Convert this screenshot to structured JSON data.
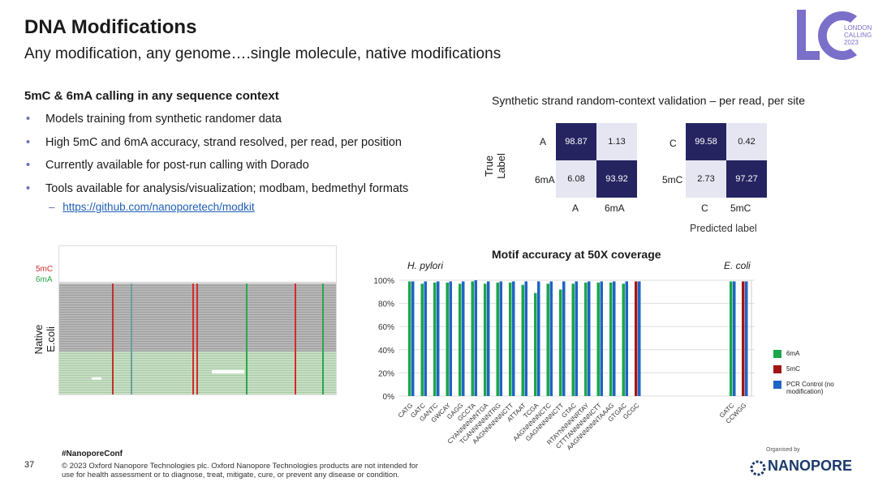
{
  "slide": {
    "title": "DNA Modifications",
    "subtitle": "Any modification, any genome….single molecule, native modifications",
    "logo_text": "LONDON CALLING 2023",
    "logo_letters": "LC"
  },
  "section": {
    "heading": "5mC & 6mA calling in any sequence context",
    "bullets": [
      "Models training from synthetic randomer data",
      "High 5mC and 6mA accuracy, strand resolved, per read, per position",
      "Currently available for post-run calling with Dorado",
      "Tools available for analysis/visualization; modbam, bedmethyl formats"
    ],
    "link": "https://github.com/nanoporetech/modkit"
  },
  "confusion": {
    "title": "Synthetic strand random-context validation – per read, per site",
    "ylabel": "True Label",
    "xlabel": "Predicted label",
    "left": {
      "rows": [
        "A",
        "6mA"
      ],
      "cols": [
        "A",
        "6mA"
      ],
      "values": [
        [
          "98.87",
          "1.13"
        ],
        [
          "6.08",
          "93.92"
        ]
      ]
    },
    "right": {
      "rows": [
        "C",
        "5mC"
      ],
      "cols": [
        "C",
        "5mC"
      ],
      "values": [
        [
          "99.58",
          "0.42"
        ],
        [
          "2.73",
          "97.27"
        ]
      ]
    }
  },
  "genome_view": {
    "label_5mc": "5mC",
    "label_6ma": "6mA",
    "side_label": "Native E.coli",
    "colors": {
      "m5c": "#d62a2a",
      "m6a": "#2aa84a"
    }
  },
  "chart_data": {
    "type": "bar",
    "title": "Motif accuracy at 50X coverage",
    "groups": [
      {
        "name": "H. pylori",
        "categories": [
          "CATG",
          "GATC",
          "GANTC",
          "GWCAY",
          "GAGG",
          "GCCTA",
          "CYANNNNNNTGA",
          "TCANNNNNNTRG",
          "AAGNNNNNNCTT",
          "ATTAAT",
          "TCGA",
          "AAGNNNNNCTC",
          "GAGNNNNNCTT",
          "GTAC",
          "RTAYNNNNNRTAY",
          "CTTTANNNNNNCTT",
          "AAGNNNNNNTAAAG",
          "GTGAC",
          "GCGC"
        ]
      },
      {
        "name": "E. coli",
        "categories": [
          "GATC",
          "CCWGG"
        ]
      }
    ],
    "series": [
      {
        "name": "6mA",
        "color": "#1aa64a"
      },
      {
        "name": "5mC",
        "color": "#a31515"
      },
      {
        "name": "PCR Control (no modification)",
        "color": "#1f63c6"
      }
    ],
    "bars": [
      {
        "cat": "CATG",
        "g": 99,
        "b": 99
      },
      {
        "cat": "GATC",
        "g": 97,
        "b": 99
      },
      {
        "cat": "GANTC",
        "g": 98,
        "b": 99
      },
      {
        "cat": "GWCAY",
        "g": 98,
        "b": 99
      },
      {
        "cat": "GAGG",
        "g": 97,
        "b": 99
      },
      {
        "cat": "GCCTA",
        "g": 99,
        "b": 100
      },
      {
        "cat": "CYANNNNNNTGA",
        "g": 97,
        "b": 99
      },
      {
        "cat": "TCANNNNNNTRG",
        "g": 98,
        "b": 99
      },
      {
        "cat": "AAGNNNNNNCTT",
        "g": 98,
        "b": 99
      },
      {
        "cat": "ATTAAT",
        "g": 96,
        "b": 99
      },
      {
        "cat": "TCGA",
        "g": 89,
        "b": 99
      },
      {
        "cat": "AAGNNNNNCTC",
        "g": 97,
        "b": 99
      },
      {
        "cat": "GAGNNNNNCTT",
        "g": 92,
        "b": 99
      },
      {
        "cat": "GTAC",
        "g": 97,
        "b": 99
      },
      {
        "cat": "RTAYNNNNNRTAY",
        "g": 98,
        "b": 99
      },
      {
        "cat": "CTTTANNNNNNCTT",
        "g": 98,
        "b": 99
      },
      {
        "cat": "AAGNNNNNNTAAAG",
        "g": 98,
        "b": 99
      },
      {
        "cat": "GTGAC",
        "g": 97,
        "b": 99
      },
      {
        "cat": "GCGC",
        "r": 99,
        "b": 99
      },
      {
        "cat": "GATC",
        "g": 99,
        "b": 99,
        "group": "E. coli"
      },
      {
        "cat": "CCWGG",
        "r": 99,
        "b": 99,
        "group": "E. coli"
      }
    ],
    "ylim": [
      0,
      100
    ],
    "yticks": [
      "0%",
      "20%",
      "40%",
      "60%",
      "80%",
      "100%"
    ],
    "ytick_values": [
      0,
      20,
      40,
      60,
      80,
      100
    ],
    "legend_position": "right"
  },
  "footer": {
    "page": "37",
    "hashtag": "#NanoporeConf",
    "copyright": "© 2023 Oxford Nanopore Technologies plc. Oxford Nanopore Technologies products are not intended for use for health assessment or to diagnose, treat, mitigate, cure, or prevent any disease or condition.",
    "organised_by": "Organised by",
    "brand": "NANOPORE"
  }
}
